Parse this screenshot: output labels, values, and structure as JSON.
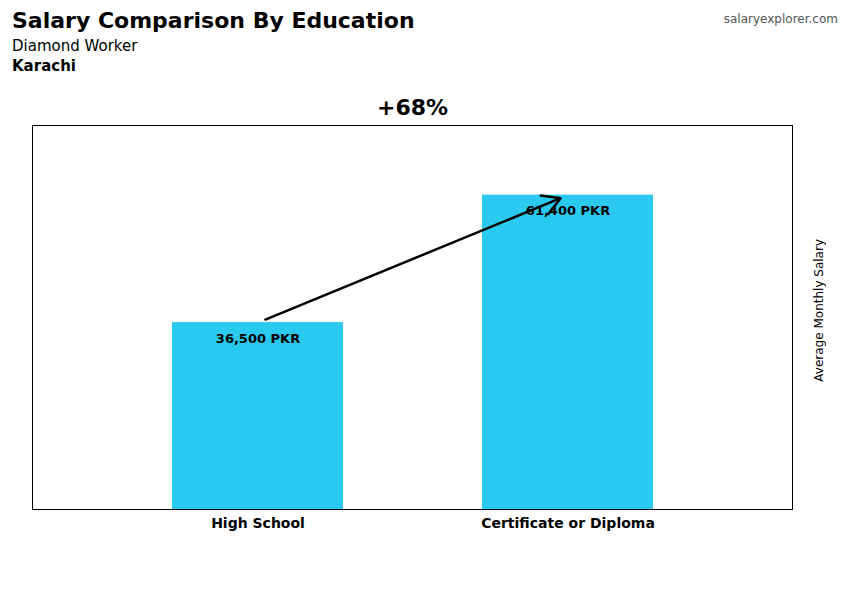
{
  "chart_data": {
    "type": "bar",
    "title": "Salary Comparison By Education",
    "subtitle": "Diamond Worker",
    "ylabel": "Average Monthly Salary",
    "annotations": [
      "Karachi",
      "salaryexplorer.com",
      "+68%"
    ],
    "categories": [
      "High School",
      "Certificate or Diploma"
    ],
    "values": [
      36500,
      61400
    ],
    "value_labels": [
      "36,500 PKR",
      "61,400 PKR"
    ],
    "data_labels": true,
    "color": "#29c9f0",
    "ylim": [
      0,
      75000
    ],
    "tick_labels": "x",
    "grid": false
  }
}
